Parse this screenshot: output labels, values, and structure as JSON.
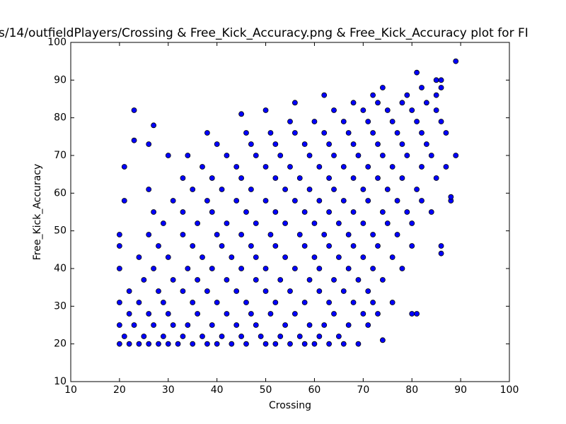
{
  "chart_data": {
    "type": "scatter",
    "title": "s/14/outfieldPlayers/Crossing & Free_Kick_Accuracy.png & Free_Kick_Accuracy plot for FI",
    "x_label": "Crossing",
    "y_label": "Free_Kick_Accuracy",
    "xlim": [
      10,
      100
    ],
    "ylim": [
      10,
      100
    ],
    "xticks": [
      10,
      20,
      30,
      40,
      50,
      60,
      70,
      80,
      90,
      100
    ],
    "yticks": [
      10,
      20,
      30,
      40,
      50,
      60,
      70,
      80,
      90,
      100
    ],
    "grid": false,
    "series": [
      {
        "color": "#0000ff",
        "x": [
          20,
          22,
          24,
          26,
          28,
          30,
          32,
          35,
          38,
          40,
          43,
          46,
          50,
          52,
          55,
          58,
          60,
          63,
          66,
          69,
          21,
          25,
          29,
          33,
          37,
          41,
          45,
          49,
          53,
          57,
          61,
          65,
          20,
          23,
          27,
          31,
          34,
          39,
          44,
          48,
          54,
          59,
          62,
          67,
          71,
          22,
          26,
          30,
          36,
          42,
          47,
          51,
          56,
          64,
          70,
          73,
          20,
          24,
          29,
          35,
          40,
          46,
          52,
          58,
          63,
          68,
          72,
          76,
          22,
          28,
          33,
          38,
          44,
          50,
          55,
          61,
          66,
          71,
          25,
          31,
          36,
          42,
          48,
          53,
          59,
          64,
          69,
          74,
          20,
          27,
          34,
          39,
          45,
          50,
          56,
          61,
          67,
          72,
          78,
          24,
          30,
          37,
          43,
          48,
          54,
          60,
          65,
          70,
          76,
          20,
          28,
          35,
          41,
          47,
          52,
          58,
          63,
          68,
          73,
          80,
          86,
          20,
          26,
          33,
          40,
          45,
          51,
          57,
          62,
          67,
          72,
          77,
          29,
          36,
          42,
          48,
          54,
          60,
          65,
          70,
          75,
          80,
          27,
          33,
          39,
          46,
          52,
          58,
          63,
          68,
          74,
          79,
          84,
          21,
          31,
          38,
          44,
          50,
          56,
          61,
          66,
          71,
          77,
          82,
          88,
          26,
          35,
          41,
          47,
          54,
          59,
          64,
          70,
          75,
          81,
          33,
          39,
          45,
          52,
          57,
          63,
          68,
          73,
          78,
          85,
          21,
          37,
          44,
          50,
          55,
          61,
          66,
          71,
          76,
          82,
          87,
          30,
          34,
          42,
          48,
          53,
          59,
          64,
          69,
          74,
          79,
          84,
          89,
          26,
          40,
          47,
          52,
          58,
          63,
          68,
          73,
          78,
          83,
          38,
          46,
          51,
          56,
          62,
          67,
          72,
          77,
          82,
          87,
          55,
          60,
          66,
          71,
          76,
          81,
          86,
          23,
          50,
          64,
          70,
          75,
          80,
          85,
          56,
          68,
          73,
          78,
          83,
          62,
          72,
          79,
          85,
          74,
          82,
          86,
          85,
          86,
          81,
          89,
          45,
          27,
          23,
          81,
          80,
          74,
          86,
          88
        ],
        "values": [
          20,
          20,
          20,
          20,
          20,
          20,
          20,
          20,
          20,
          20,
          20,
          20,
          20,
          20,
          20,
          20,
          20,
          20,
          20,
          20,
          22,
          22,
          22,
          22,
          22,
          22,
          22,
          22,
          22,
          22,
          22,
          22,
          25,
          25,
          25,
          25,
          25,
          25,
          25,
          25,
          25,
          25,
          25,
          25,
          25,
          28,
          28,
          28,
          28,
          28,
          28,
          28,
          28,
          28,
          28,
          28,
          31,
          31,
          31,
          31,
          31,
          31,
          31,
          31,
          31,
          31,
          31,
          31,
          34,
          34,
          34,
          34,
          34,
          34,
          34,
          34,
          34,
          34,
          37,
          37,
          37,
          37,
          37,
          37,
          37,
          37,
          37,
          37,
          40,
          40,
          40,
          40,
          40,
          40,
          40,
          40,
          40,
          40,
          40,
          43,
          43,
          43,
          43,
          43,
          43,
          43,
          43,
          43,
          43,
          46,
          46,
          46,
          46,
          46,
          46,
          46,
          46,
          46,
          46,
          46,
          46,
          49,
          49,
          49,
          49,
          49,
          49,
          49,
          49,
          49,
          49,
          49,
          52,
          52,
          52,
          52,
          52,
          52,
          52,
          52,
          52,
          52,
          55,
          55,
          55,
          55,
          55,
          55,
          55,
          55,
          55,
          55,
          55,
          58,
          58,
          58,
          58,
          58,
          58,
          58,
          58,
          58,
          58,
          58,
          58,
          61,
          61,
          61,
          61,
          61,
          61,
          61,
          61,
          61,
          61,
          64,
          64,
          64,
          64,
          64,
          64,
          64,
          64,
          64,
          64,
          67,
          67,
          67,
          67,
          67,
          67,
          67,
          67,
          67,
          67,
          67,
          70,
          70,
          70,
          70,
          70,
          70,
          70,
          70,
          70,
          70,
          70,
          70,
          73,
          73,
          73,
          73,
          73,
          73,
          73,
          73,
          73,
          73,
          76,
          76,
          76,
          76,
          76,
          76,
          76,
          76,
          76,
          76,
          79,
          79,
          79,
          79,
          79,
          79,
          79,
          82,
          82,
          82,
          82,
          82,
          82,
          82,
          84,
          84,
          84,
          84,
          84,
          86,
          86,
          86,
          86,
          88,
          88,
          88,
          90,
          90,
          92,
          95,
          81,
          78,
          74,
          28,
          28,
          21,
          44,
          59
        ]
      }
    ]
  }
}
